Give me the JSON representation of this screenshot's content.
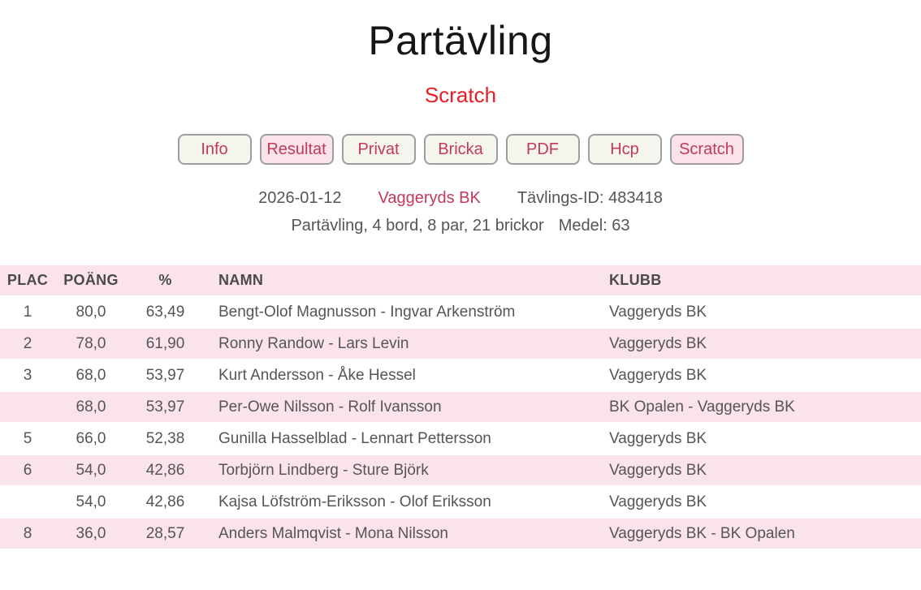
{
  "page": {
    "title": "Partävling",
    "subtitle": "Scratch"
  },
  "toolbar": {
    "buttons": [
      {
        "label": "Info",
        "active": false
      },
      {
        "label": "Resultat",
        "active": true
      },
      {
        "label": "Privat",
        "active": false
      },
      {
        "label": "Bricka",
        "active": false
      },
      {
        "label": "PDF",
        "active": false
      },
      {
        "label": "Hcp",
        "active": false
      },
      {
        "label": "Scratch",
        "active": true
      }
    ]
  },
  "meta": {
    "date": "2026-01-12",
    "club": "Vaggeryds BK",
    "competition_id": "Tävlings-ID: 483418",
    "details": "Partävling, 4 bord, 8 par, 21 brickor",
    "average": "Medel: 63"
  },
  "table": {
    "headers": [
      "PLAC",
      "POÄNG",
      "%",
      "NAMN",
      "KLUBB"
    ],
    "rows": [
      {
        "plac": "1",
        "poang": "80,0",
        "pct": "63,49",
        "namn": "Bengt-Olof Magnusson - Ingvar Arkenström",
        "klubb": "Vaggeryds BK"
      },
      {
        "plac": "2",
        "poang": "78,0",
        "pct": "61,90",
        "namn": "Ronny Randow - Lars Levin",
        "klubb": "Vaggeryds BK"
      },
      {
        "plac": "3",
        "poang": "68,0",
        "pct": "53,97",
        "namn": "Kurt Andersson - Åke Hessel",
        "klubb": "Vaggeryds BK"
      },
      {
        "plac": "",
        "poang": "68,0",
        "pct": "53,97",
        "namn": "Per-Owe Nilsson - Rolf Ivansson",
        "klubb": "BK Opalen - Vaggeryds BK"
      },
      {
        "plac": "5",
        "poang": "66,0",
        "pct": "52,38",
        "namn": "Gunilla Hasselblad - Lennart Pettersson",
        "klubb": "Vaggeryds BK"
      },
      {
        "plac": "6",
        "poang": "54,0",
        "pct": "42,86",
        "namn": "Torbjörn Lindberg - Sture Björk",
        "klubb": "Vaggeryds BK"
      },
      {
        "plac": "",
        "poang": "54,0",
        "pct": "42,86",
        "namn": "Kajsa Löfström-Eriksson - Olof Eriksson",
        "klubb": "Vaggeryds BK"
      },
      {
        "plac": "8",
        "poang": "36,0",
        "pct": "28,57",
        "namn": "Anders Malmqvist - Mona Nilsson",
        "klubb": "Vaggeryds BK - BK Opalen"
      }
    ]
  },
  "colors": {
    "subtitle_red": "#ea1c25",
    "crimson": "#c23a5a",
    "row_pink": "#fbe4e9",
    "button_bg": "#f5f5ee",
    "button_active_bg": "#fbe3ea",
    "text_gray": "#555555"
  }
}
